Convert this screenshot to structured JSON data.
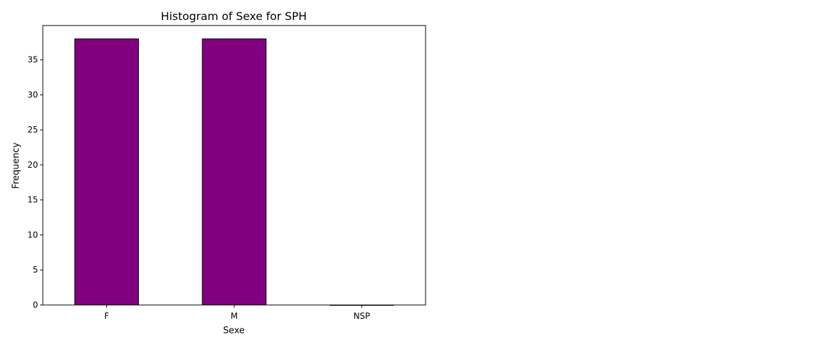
{
  "chart_data": {
    "type": "bar",
    "title": "Histogram of Sexe for SPH",
    "xlabel": "Sexe",
    "ylabel": "Frequency",
    "categories": [
      "F",
      "M",
      "NSP"
    ],
    "values": [
      38,
      38,
      0
    ],
    "ylim": [
      0,
      39.9
    ],
    "yticks": [
      0,
      5,
      10,
      15,
      20,
      25,
      30,
      35
    ],
    "grid": false,
    "legend": "none",
    "colors": {
      "bar_fill": "#800080",
      "bar_edge": "#000000",
      "axes": "#000000",
      "background": "#ffffff"
    }
  }
}
